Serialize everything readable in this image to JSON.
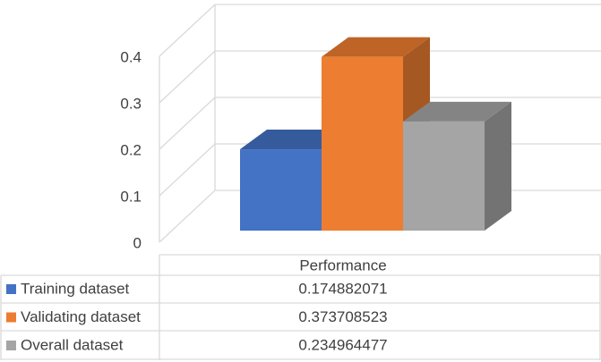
{
  "chart_data": {
    "type": "bar",
    "categories": [
      "Performance"
    ],
    "series": [
      {
        "name": "Training dataset",
        "color": "#4472c4",
        "values": [
          0.174882071
        ]
      },
      {
        "name": "Validating dataset",
        "color": "#ed7d31",
        "values": [
          0.373708523
        ]
      },
      {
        "name": "Overall dataset",
        "color": "#a5a5a5",
        "values": [
          0.234964477
        ]
      }
    ],
    "ylim": [
      0,
      0.4
    ],
    "yticks": [
      0,
      0.1,
      0.2,
      0.3,
      0.4
    ],
    "grid": true
  }
}
